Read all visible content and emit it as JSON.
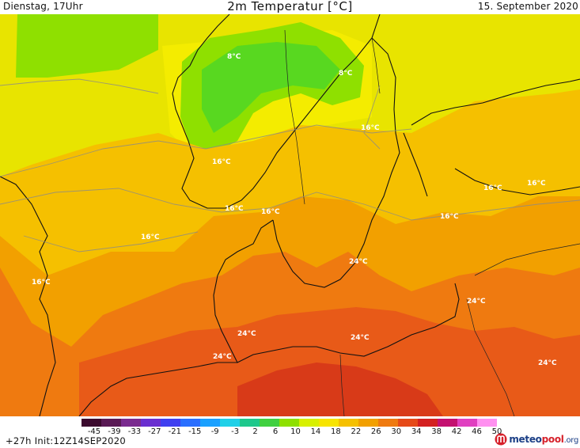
{
  "header": {
    "left": "Dienstag, 17Uhr",
    "title": "2m Temperatur [°C]",
    "right": "15. September 2020"
  },
  "map": {
    "labels": [
      {
        "text": "8°C"
      },
      {
        "text": "8°C"
      },
      {
        "text": "16°C"
      },
      {
        "text": "16°C"
      },
      {
        "text": "16°C"
      },
      {
        "text": "16°C"
      },
      {
        "text": "16°C"
      },
      {
        "text": "16°C"
      },
      {
        "text": "16°C"
      },
      {
        "text": "16°C"
      },
      {
        "text": "16°C"
      },
      {
        "text": "24°C"
      },
      {
        "text": "24°C"
      },
      {
        "text": "24°C"
      },
      {
        "text": "24°C"
      },
      {
        "text": "24°C"
      },
      {
        "text": "24°C"
      }
    ]
  },
  "colorscale": {
    "ticks": [
      "-45",
      "-39",
      "-33",
      "-27",
      "-21",
      "-15",
      "-9",
      "-3",
      "2",
      "6",
      "10",
      "14",
      "18",
      "22",
      "26",
      "30",
      "34",
      "38",
      "42",
      "46",
      "50"
    ],
    "colors": [
      "#3b0a2e",
      "#5a1a55",
      "#7a2b8f",
      "#6a2fd0",
      "#3f3ff0",
      "#2a6fff",
      "#1aa0ff",
      "#20d0e8",
      "#1ec88c",
      "#40d040",
      "#8ee000",
      "#d8f000",
      "#f7e400",
      "#f5c000",
      "#f2a000",
      "#ef7a10",
      "#e64a18",
      "#d42020",
      "#c41070",
      "#e040c0",
      "#ff90f0"
    ]
  },
  "footer": {
    "run_info": "+27h Init:12Z14SEP2020",
    "brand_main": "meteo",
    "brand_accent": "pool",
    "brand_tld": ".org"
  }
}
